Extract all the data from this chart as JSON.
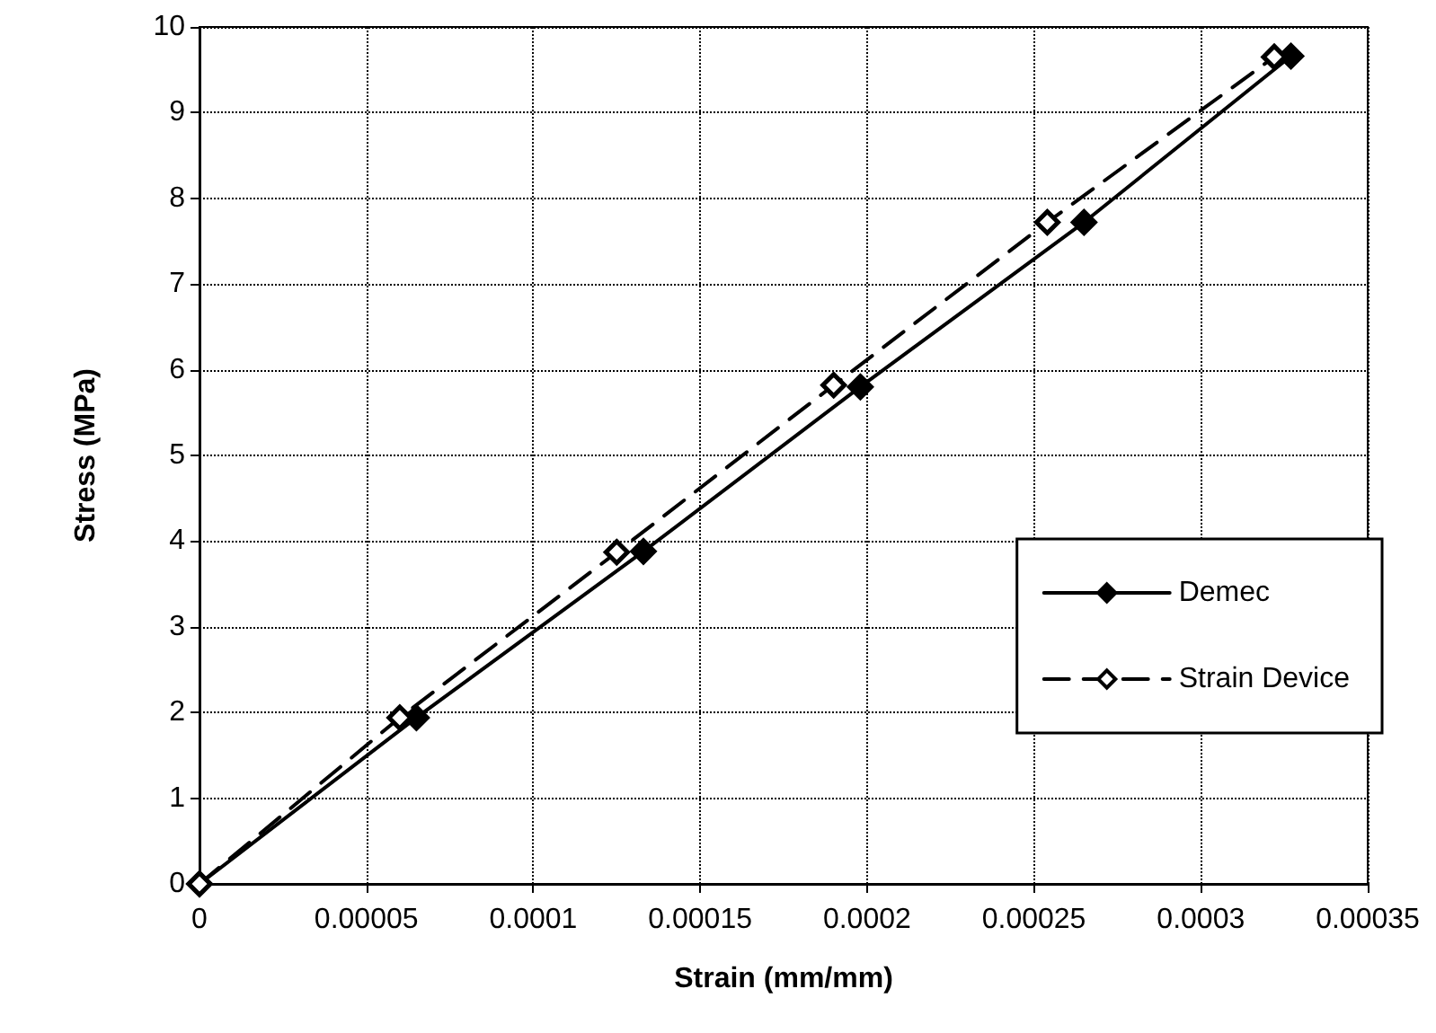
{
  "chart_data": {
    "type": "line",
    "xlabel": "Strain (mm/mm)",
    "ylabel": "Stress (MPa)",
    "xlim": [
      0,
      0.00035
    ],
    "xticks": [
      0,
      {
        "value": 5e-05,
        "label": "0.00005"
      },
      0.0001,
      0.00015,
      0.0002,
      0.00025,
      0.0003,
      0.00035
    ],
    "ylim": [
      0,
      10
    ],
    "yticks": [
      0,
      1,
      2,
      3,
      4,
      5,
      6,
      7,
      8,
      9,
      10
    ],
    "grid": true,
    "legend": "right",
    "marker": "diamond",
    "series": [
      {
        "name": "Demec",
        "color": "#000000",
        "line_style": "solid",
        "x": [
          0,
          6.5e-05,
          0.000133,
          0.000198,
          0.000265,
          0.000327
        ],
        "values": [
          0,
          1.94,
          3.88,
          5.8,
          7.72,
          9.66
        ]
      },
      {
        "name": "Strain Device",
        "color": "#000000",
        "line_style": "dashed",
        "x": [
          0,
          6e-05,
          0.000125,
          0.00019,
          0.000254,
          0.000322
        ],
        "values": [
          0,
          1.94,
          3.87,
          5.82,
          7.72,
          9.65
        ]
      }
    ]
  }
}
